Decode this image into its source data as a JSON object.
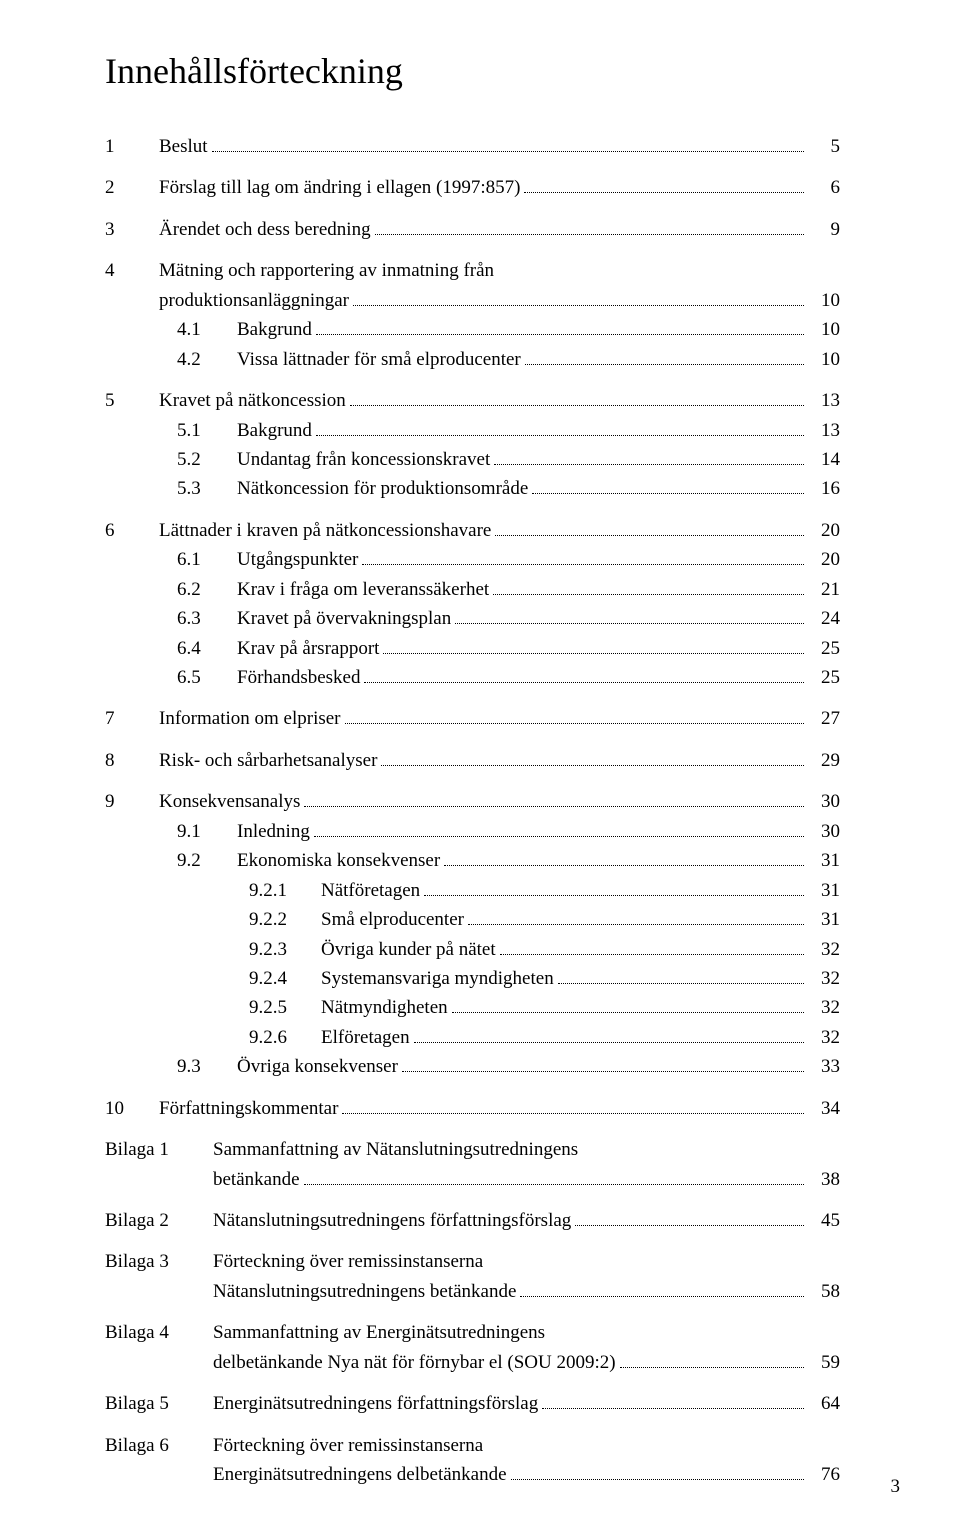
{
  "title": "Innehållsförteckning",
  "page_number": "3",
  "entries": [
    {
      "type": "l1",
      "num": "1",
      "text": "Beslut",
      "page": "5",
      "space": true
    },
    {
      "type": "l1",
      "num": "2",
      "text": "Förslag till lag om ändring i ellagen (1997:857)",
      "page": "6",
      "space": true
    },
    {
      "type": "l1",
      "num": "3",
      "text": "Ärendet och dess beredning",
      "page": "9",
      "space": true
    },
    {
      "type": "l1",
      "num": "4",
      "text": "Mätning och rapportering av inmatning från produktionsanläggningar",
      "page": "10",
      "space": true,
      "multiline": true,
      "first": "Mätning och rapportering av inmatning från",
      "last": "produktionsanläggningar"
    },
    {
      "type": "l2",
      "num": "4.1",
      "text": "Bakgrund",
      "page": "10"
    },
    {
      "type": "l2",
      "num": "4.2",
      "text": "Vissa lättnader för små elproducenter",
      "page": "10"
    },
    {
      "type": "l1",
      "num": "5",
      "text": "Kravet på nätkoncession",
      "page": "13",
      "space": true
    },
    {
      "type": "l2",
      "num": "5.1",
      "text": "Bakgrund",
      "page": "13"
    },
    {
      "type": "l2",
      "num": "5.2",
      "text": "Undantag från koncessionskravet",
      "page": "14"
    },
    {
      "type": "l2",
      "num": "5.3",
      "text": "Nätkoncession för produktionsområde",
      "page": "16"
    },
    {
      "type": "l1",
      "num": "6",
      "text": "Lättnader i kraven på nätkoncessionshavare",
      "page": "20",
      "space": true
    },
    {
      "type": "l2",
      "num": "6.1",
      "text": "Utgångspunkter",
      "page": "20"
    },
    {
      "type": "l2",
      "num": "6.2",
      "text": "Krav i fråga om leveranssäkerhet",
      "page": "21"
    },
    {
      "type": "l2",
      "num": "6.3",
      "text": "Kravet på övervakningsplan",
      "page": "24"
    },
    {
      "type": "l2",
      "num": "6.4",
      "text": "Krav på årsrapport",
      "page": "25"
    },
    {
      "type": "l2",
      "num": "6.5",
      "text": "Förhandsbesked",
      "page": "25"
    },
    {
      "type": "l1",
      "num": "7",
      "text": "Information om elpriser",
      "page": "27",
      "space": true
    },
    {
      "type": "l1",
      "num": "8",
      "text": "Risk- och sårbarhetsanalyser",
      "page": "29",
      "space": true
    },
    {
      "type": "l1",
      "num": "9",
      "text": "Konsekvensanalys",
      "page": "30",
      "space": true
    },
    {
      "type": "l2",
      "num": "9.1",
      "text": "Inledning",
      "page": "30"
    },
    {
      "type": "l2",
      "num": "9.2",
      "text": "Ekonomiska konsekvenser",
      "page": "31"
    },
    {
      "type": "l3",
      "num": "9.2.1",
      "text": "Nätföretagen",
      "page": "31"
    },
    {
      "type": "l3",
      "num": "9.2.2",
      "text": "Små elproducenter",
      "page": "31"
    },
    {
      "type": "l3",
      "num": "9.2.3",
      "text": "Övriga kunder på nätet",
      "page": "32"
    },
    {
      "type": "l3",
      "num": "9.2.4",
      "text": "Systemansvariga myndigheten",
      "page": "32"
    },
    {
      "type": "l3",
      "num": "9.2.5",
      "text": "Nätmyndigheten",
      "page": "32"
    },
    {
      "type": "l3",
      "num": "9.2.6",
      "text": "Elföretagen",
      "page": "32"
    },
    {
      "type": "l2",
      "num": "9.3",
      "text": "Övriga konsekvenser",
      "page": "33"
    },
    {
      "type": "l1",
      "num": "10",
      "text": "Författningskommentar",
      "page": "34",
      "space": true
    },
    {
      "type": "app",
      "num": "Bilaga 1",
      "text": "Sammanfattning av Nätanslutningsutredningens betänkande",
      "page": "38",
      "space": true,
      "multiline": true,
      "first": "Sammanfattning av Nätanslutningsutredningens",
      "last": "betänkande"
    },
    {
      "type": "app",
      "num": "Bilaga 2",
      "text": "Nätanslutningsutredningens författningsförslag",
      "page": "45",
      "space": true
    },
    {
      "type": "app",
      "num": "Bilaga 3",
      "text": "Förteckning över remissinstanserna Nätanslutningsutredningens betänkande",
      "page": "58",
      "space": true,
      "multiline": true,
      "first": "Förteckning över remissinstanserna",
      "last": "Nätanslutningsutredningens betänkande"
    },
    {
      "type": "app",
      "num": "Bilaga 4",
      "text": "Sammanfattning av Energinätsutredningens delbetänkande Nya nät för förnybar el (SOU 2009:2)",
      "page": "59",
      "space": true,
      "multiline": true,
      "first": "Sammanfattning av Energinätsutredningens",
      "last": "delbetänkande Nya nät för förnybar el (SOU 2009:2)"
    },
    {
      "type": "app",
      "num": "Bilaga 5",
      "text": "Energinätsutredningens författningsförslag",
      "page": "64",
      "space": true
    },
    {
      "type": "app",
      "num": "Bilaga 6",
      "text": "Förteckning över remissinstanserna Energinätsutredningens delbetänkande",
      "page": "76",
      "space": true,
      "multiline": true,
      "first": "Förteckning över remissinstanserna",
      "last": "Energinätsutredningens delbetänkande"
    }
  ]
}
